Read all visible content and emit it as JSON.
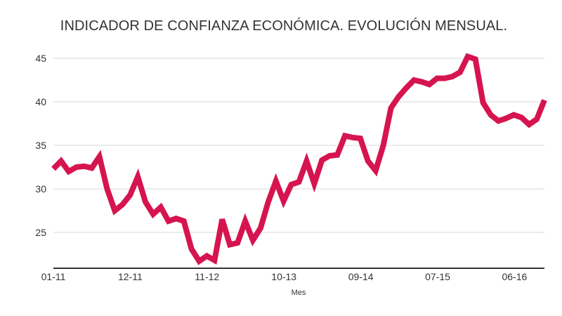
{
  "chart_data": {
    "type": "line",
    "title": "INDICADOR DE CONFIANZA ECONÓMICA. EVOLUCIÓN MENSUAL.",
    "xlabel": "Mes",
    "ylabel": "",
    "x_tick_labels": [
      "01-11",
      "12-11",
      "11-12",
      "10-13",
      "09-14",
      "07-15",
      "06-16"
    ],
    "y_tick_labels": [
      "25",
      "30",
      "35",
      "40",
      "45"
    ],
    "ylim": [
      21,
      46.5
    ],
    "grid": true,
    "legend": "none",
    "series": [
      {
        "values": [
          32.3,
          33.2,
          32.0,
          32.5,
          32.6,
          32.4,
          33.7,
          30.0,
          27.5,
          28.2,
          29.3,
          31.4,
          28.5,
          27.1,
          27.9,
          26.3,
          26.6,
          26.3,
          23.1,
          21.7,
          22.3,
          21.8,
          26.5,
          23.6,
          23.8,
          26.3,
          24.1,
          25.5,
          28.5,
          30.9,
          28.6,
          30.5,
          30.8,
          33.2,
          30.6,
          33.3,
          33.8,
          33.9,
          36.1,
          35.9,
          35.8,
          33.2,
          32.1,
          35.0,
          39.3,
          40.6,
          41.6,
          42.5,
          42.3,
          42.0,
          42.7,
          42.7,
          42.9,
          43.4,
          45.2,
          44.9,
          39.9,
          38.5,
          37.8,
          38.1,
          38.5,
          38.2,
          37.4,
          38.0,
          40.2
        ],
        "color": "#d6144f"
      }
    ]
  }
}
